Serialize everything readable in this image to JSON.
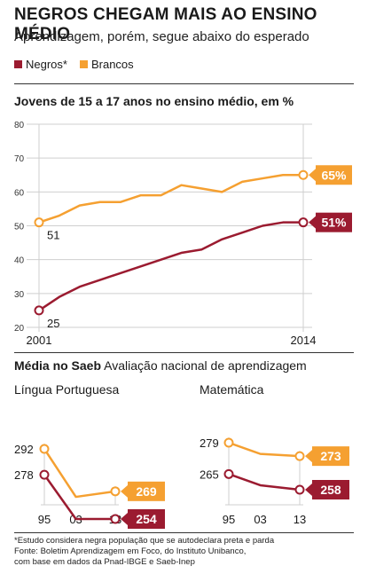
{
  "header": {
    "title": "NEGROS CHEGAM MAIS AO ENSINO MÉDIO",
    "subtitle": "Aprendizagem, porém, segue abaixo do esperado"
  },
  "legend": {
    "items": [
      {
        "label": "Negros*",
        "color": "#9b1b30"
      },
      {
        "label": "Brancos",
        "color": "#f5a031"
      }
    ]
  },
  "colors": {
    "negros": "#9b1b30",
    "brancos": "#f5a031",
    "grid": "#cfcfcf"
  },
  "saeb": {
    "title_bold": "Média no Saeb",
    "title_rest": "Avaliação nacional de aprendizagem"
  },
  "chart_data": [
    {
      "type": "line",
      "title": "Jovens de 15 a 17 anos no ensino médio, em %",
      "x": [
        2001,
        2002,
        2003,
        2004,
        2005,
        2006,
        2007,
        2008,
        2009,
        2010,
        2011,
        2012,
        2013,
        2014
      ],
      "x_tick_labels": [
        "2001",
        "2014"
      ],
      "ylim": [
        20,
        80
      ],
      "yticks": [
        20,
        30,
        40,
        50,
        60,
        70,
        80
      ],
      "grid": "horizontal",
      "series": [
        {
          "name": "Brancos",
          "values": [
            51,
            53,
            56,
            57,
            57,
            59,
            59,
            62,
            61,
            60,
            63,
            64,
            65,
            65
          ],
          "start_label": "51",
          "end_label": "65%"
        },
        {
          "name": "Negros*",
          "values": [
            25,
            29,
            32,
            34,
            36,
            38,
            40,
            42,
            43,
            46,
            48,
            50,
            51,
            51
          ],
          "start_label": "25",
          "end_label": "51%"
        }
      ]
    },
    {
      "type": "line",
      "title": "Língua Portuguesa",
      "categories": [
        "95",
        "03",
        "13"
      ],
      "x": [
        1995,
        2003,
        2013
      ],
      "series": [
        {
          "name": "Brancos",
          "values": [
            292,
            266,
            269
          ],
          "start_label": "292",
          "end_label": "269"
        },
        {
          "name": "Negros*",
          "values": [
            278,
            254,
            254
          ],
          "start_label": "278",
          "end_label": "254"
        }
      ]
    },
    {
      "type": "line",
      "title": "Matemática",
      "categories": [
        "95",
        "03",
        "13"
      ],
      "x": [
        1995,
        2003,
        2013
      ],
      "series": [
        {
          "name": "Brancos",
          "values": [
            279,
            274,
            273
          ],
          "start_label": "279",
          "end_label": "273"
        },
        {
          "name": "Negros*",
          "values": [
            265,
            260,
            258
          ],
          "start_label": "265",
          "end_label": "258"
        }
      ]
    }
  ],
  "footnote": {
    "lines": [
      "*Estudo considera negra população que se autodeclara preta e parda",
      "Fonte:  Boletim Aprendizagem em Foco, do Instituto Unibanco,",
      "com base em dados da Pnad-IBGE e Saeb-Inep"
    ]
  }
}
